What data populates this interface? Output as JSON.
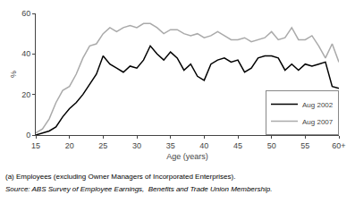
{
  "chart_data": {
    "type": "line",
    "xlabel": "Age (years)",
    "ylabel": "%",
    "x": [
      15,
      16,
      17,
      18,
      19,
      20,
      21,
      22,
      23,
      24,
      25,
      26,
      27,
      28,
      29,
      30,
      31,
      32,
      33,
      34,
      35,
      36,
      37,
      38,
      39,
      40,
      41,
      42,
      43,
      44,
      45,
      46,
      47,
      48,
      49,
      50,
      51,
      52,
      53,
      54,
      55,
      56,
      57,
      58,
      59,
      60
    ],
    "series": [
      {
        "name": "Aug 2002",
        "color": "#000000",
        "values": [
          0,
          1,
          2,
          4,
          9,
          13,
          16,
          20,
          25,
          30,
          39,
          35,
          33,
          31,
          34,
          33,
          37,
          44,
          40,
          37,
          41,
          38,
          32,
          35,
          29,
          27,
          35,
          37,
          38,
          36,
          37,
          31,
          33,
          38,
          39,
          39,
          38,
          32,
          35,
          32,
          35,
          34,
          35,
          36,
          24,
          23
        ]
      },
      {
        "name": "Aug 2007",
        "color": "#aaaaaa",
        "values": [
          1,
          3,
          8,
          16,
          22,
          24,
          30,
          38,
          44,
          45,
          50,
          53,
          51,
          53,
          54,
          53,
          55,
          55,
          53,
          50,
          52,
          52,
          50,
          49,
          50,
          48,
          49,
          51,
          49,
          47,
          47,
          48,
          46,
          47,
          48,
          51,
          47,
          48,
          53,
          47,
          47,
          49,
          44,
          38,
          45,
          36
        ]
      }
    ],
    "xlim": [
      15,
      60
    ],
    "xticks": [
      15,
      20,
      25,
      30,
      35,
      40,
      45,
      50,
      55,
      {
        "value": 60,
        "label": "60+"
      }
    ],
    "ylim": [
      0,
      60
    ],
    "yticks": [
      0,
      20,
      40,
      60
    ],
    "grid": false,
    "legend": "lower right",
    "annotations": [
      "(a) Employees (excluding Owner Managers of Incorporated Enterprises).",
      "Source: ABS Survey of Employee Earnings,  Benefits and Trade Union Membership."
    ]
  }
}
